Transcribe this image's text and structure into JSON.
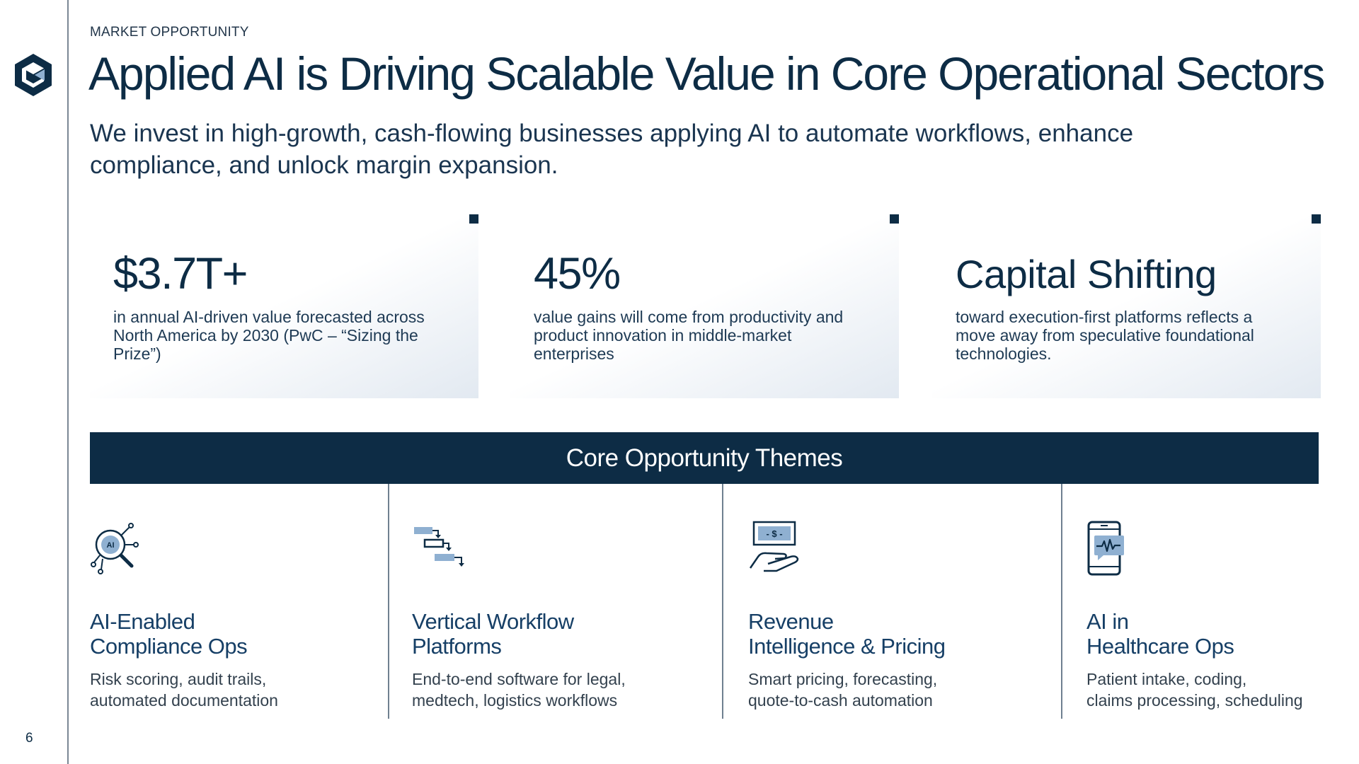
{
  "header": {
    "kicker": "MARKET OPPORTUNITY",
    "title": "Applied AI is Driving Scalable Value in Core Operational Sectors",
    "subtitle": "We invest in high-growth, cash-flowing businesses applying AI to automate workflows, enhance compliance, and unlock margin expansion."
  },
  "stats": [
    {
      "value": "$3.7T+",
      "description": "in annual AI-driven value forecasted across North America by 2030 (PwC – “Sizing the Prize”)"
    },
    {
      "value": "45%",
      "description": "value gains will come from productivity and product innovation in middle-market enterprises"
    },
    {
      "value": "Capital Shifting",
      "description": "toward execution-first platforms reflects a move away from speculative foundational technologies."
    }
  ],
  "themes_banner": "Core Opportunity Themes",
  "themes": [
    {
      "icon": "ai-magnifier-icon",
      "title_line1": "AI-Enabled",
      "title_line2": "Compliance Ops",
      "desc_line1": "Risk scoring, audit trails,",
      "desc_line2": "automated documentation"
    },
    {
      "icon": "workflow-icon",
      "title_line1": "Vertical Workflow",
      "title_line2": "Platforms",
      "desc_line1": "End-to-end software for legal,",
      "desc_line2": "medtech, logistics workflows"
    },
    {
      "icon": "hand-money-icon",
      "title_line1": "Revenue",
      "title_line2": "Intelligence & Pricing",
      "desc_line1": "Smart pricing, forecasting,",
      "desc_line2": "quote-to-cash automation"
    },
    {
      "icon": "phone-heartbeat-icon",
      "title_line1": "AI in",
      "title_line2": "Healthcare Ops",
      "desc_line1": "Patient intake, coding,",
      "desc_line2": "claims processing, scheduling"
    }
  ],
  "icon_labels": {
    "ai_badge": "AI",
    "money_badge": "- $ -"
  },
  "page_number": "6",
  "colors": {
    "navy": "#0d2c45",
    "accent_light": "#8fb0d1",
    "rule": "#7a8794"
  }
}
